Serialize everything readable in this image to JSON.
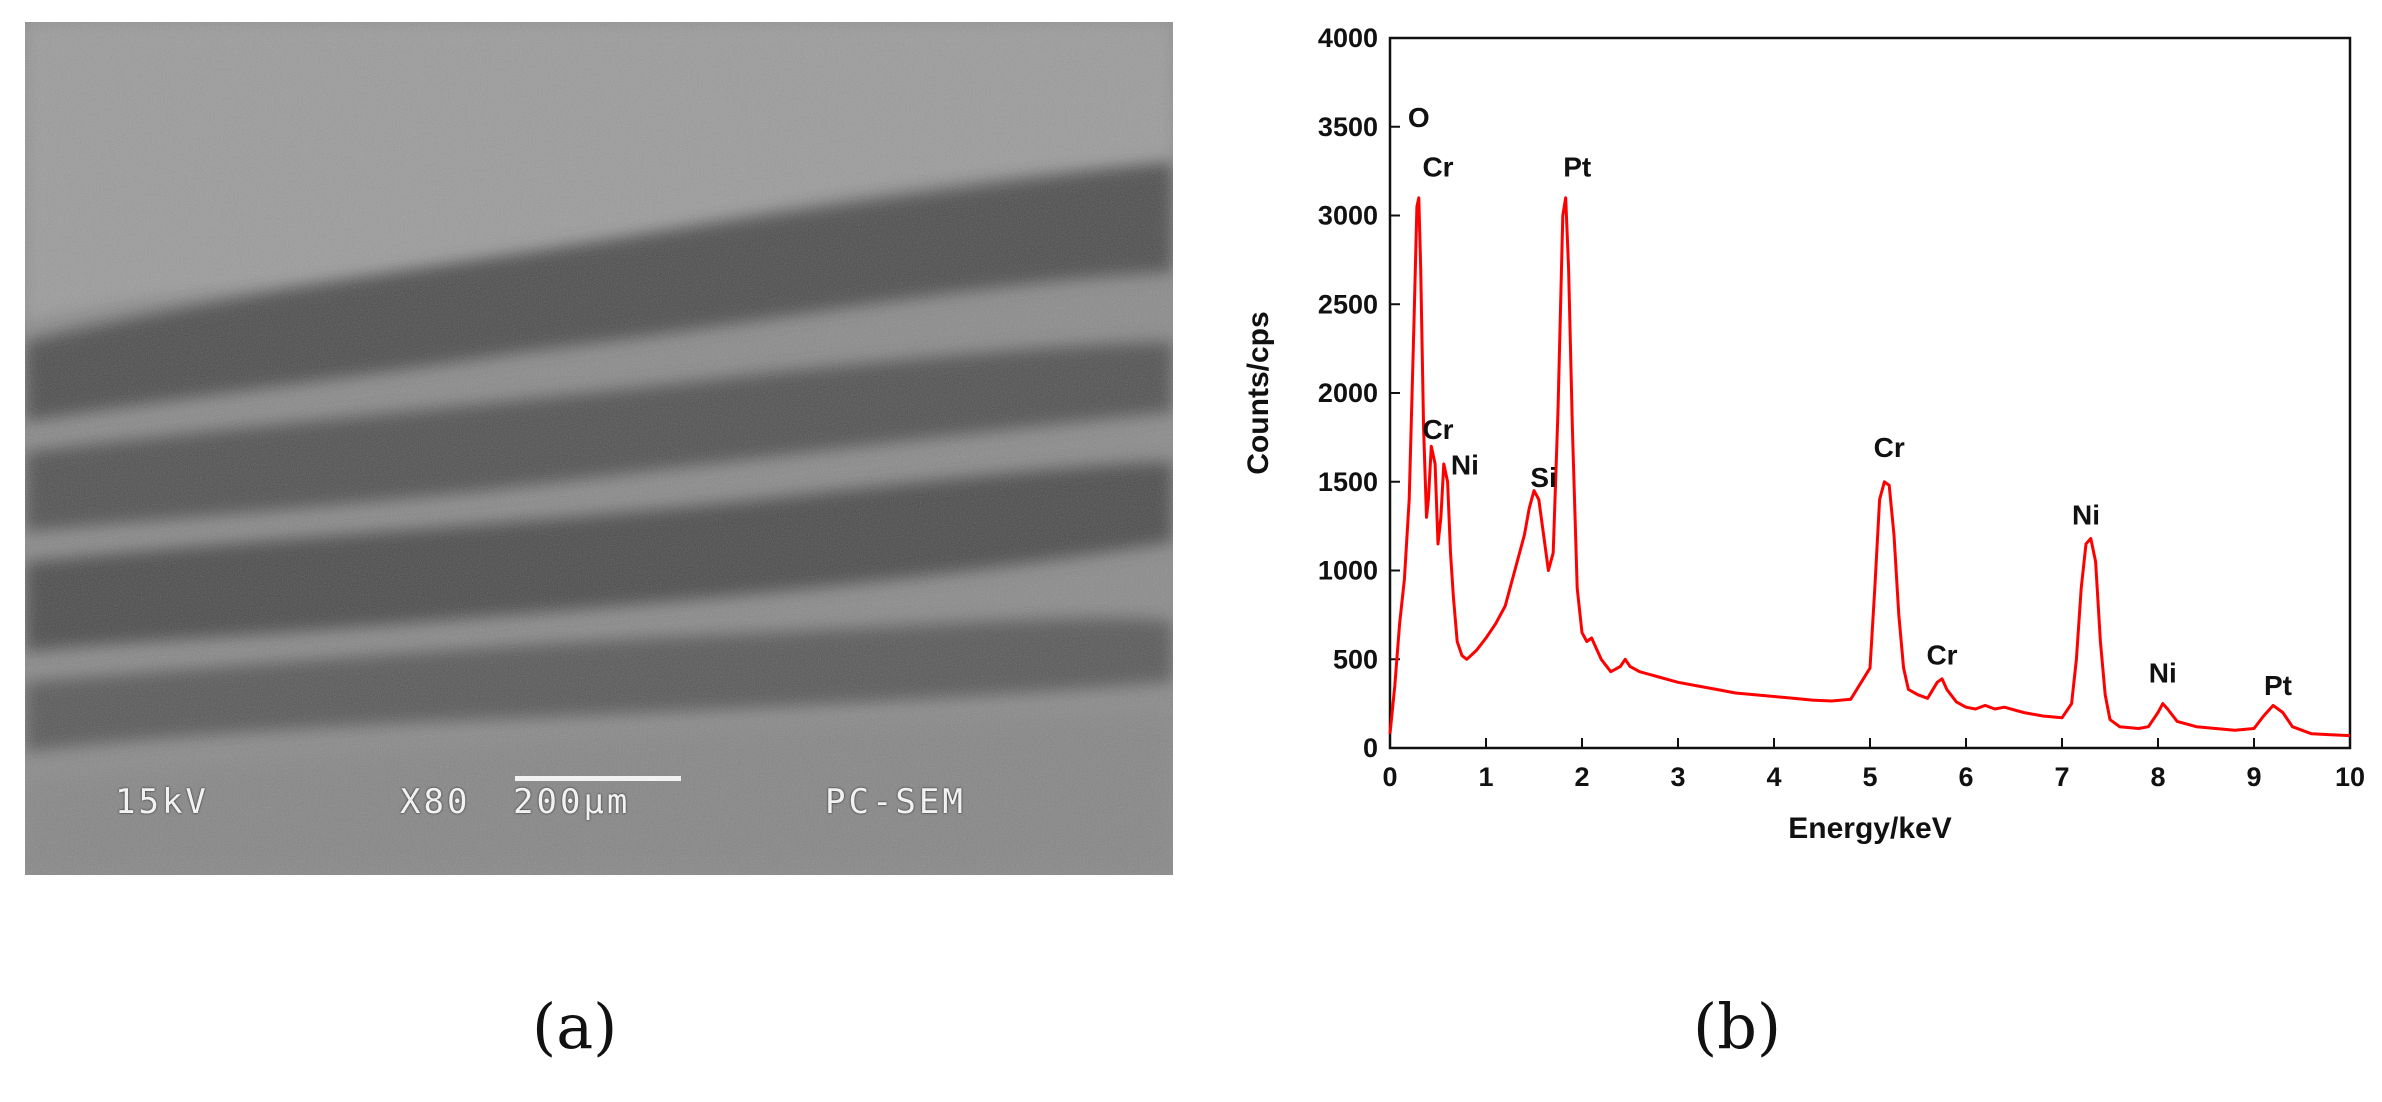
{
  "sem_image": {
    "accelerating_voltage": "15kV",
    "magnification": "X80",
    "scale_bar": "200μm",
    "instrument": "PC-SEM"
  },
  "captions": {
    "a": "(a)",
    "b": "(b)"
  },
  "chart_data": {
    "type": "line",
    "title": "",
    "xlabel": "Energy/keV",
    "ylabel": "Counts/cps",
    "xlim": [
      0,
      10
    ],
    "ylim": [
      0,
      4000
    ],
    "x_ticks": [
      0,
      1,
      2,
      3,
      4,
      5,
      6,
      7,
      8,
      9,
      10
    ],
    "y_ticks": [
      0,
      500,
      1000,
      1500,
      2000,
      2500,
      3000,
      3500,
      4000
    ],
    "grid": false,
    "legend": "none",
    "series_color": "#ff0000",
    "series": [
      {
        "x": [
          0.0,
          0.05,
          0.1,
          0.15,
          0.2,
          0.25,
          0.28,
          0.3,
          0.32,
          0.35,
          0.38,
          0.4,
          0.43,
          0.47,
          0.5,
          0.53,
          0.56,
          0.6,
          0.63,
          0.66,
          0.7,
          0.75,
          0.8,
          0.9,
          1.0,
          1.1,
          1.2,
          1.3,
          1.4,
          1.45,
          1.5,
          1.55,
          1.6,
          1.65,
          1.7,
          1.75,
          1.8,
          1.83,
          1.86,
          1.9,
          1.95,
          2.0,
          2.05,
          2.1,
          2.15,
          2.2,
          2.3,
          2.4,
          2.45,
          2.5,
          2.6,
          2.8,
          3.0,
          3.2,
          3.4,
          3.6,
          3.8,
          4.0,
          4.2,
          4.4,
          4.6,
          4.8,
          5.0,
          5.05,
          5.1,
          5.15,
          5.2,
          5.25,
          5.3,
          5.35,
          5.4,
          5.5,
          5.6,
          5.7,
          5.75,
          5.8,
          5.9,
          6.0,
          6.1,
          6.2,
          6.3,
          6.4,
          6.6,
          6.8,
          7.0,
          7.1,
          7.15,
          7.2,
          7.25,
          7.3,
          7.35,
          7.4,
          7.45,
          7.5,
          7.6,
          7.8,
          7.9,
          8.0,
          8.05,
          8.1,
          8.2,
          8.4,
          8.6,
          8.8,
          9.0,
          9.1,
          9.2,
          9.3,
          9.4,
          9.6,
          9.8,
          10.0
        ],
        "y": [
          80,
          350,
          700,
          950,
          1400,
          2400,
          3050,
          3100,
          2700,
          1800,
          1300,
          1400,
          1700,
          1600,
          1150,
          1300,
          1600,
          1500,
          1100,
          850,
          600,
          520,
          500,
          550,
          620,
          700,
          800,
          1000,
          1200,
          1350,
          1450,
          1400,
          1200,
          1000,
          1100,
          1900,
          3000,
          3100,
          2700,
          1800,
          900,
          650,
          600,
          620,
          560,
          500,
          430,
          460,
          500,
          460,
          430,
          400,
          370,
          350,
          330,
          310,
          300,
          290,
          280,
          270,
          265,
          275,
          450,
          900,
          1400,
          1500,
          1480,
          1200,
          750,
          450,
          330,
          300,
          280,
          370,
          390,
          330,
          260,
          230,
          220,
          240,
          220,
          230,
          200,
          180,
          170,
          250,
          500,
          900,
          1150,
          1180,
          1050,
          600,
          300,
          160,
          120,
          110,
          120,
          200,
          250,
          220,
          150,
          120,
          110,
          100,
          110,
          180,
          240,
          200,
          120,
          80,
          75,
          70
        ]
      }
    ],
    "annotations": [
      {
        "text": "O",
        "x": 0.3,
        "y": 3500
      },
      {
        "text": "Cr",
        "x": 0.5,
        "y": 3220
      },
      {
        "text": "Pt",
        "x": 1.95,
        "y": 3220
      },
      {
        "text": "Cr",
        "x": 0.5,
        "y": 1740
      },
      {
        "text": "Ni",
        "x": 0.78,
        "y": 1540
      },
      {
        "text": "Si",
        "x": 1.6,
        "y": 1470
      },
      {
        "text": "Cr",
        "x": 5.2,
        "y": 1640
      },
      {
        "text": "Ni",
        "x": 7.25,
        "y": 1260
      },
      {
        "text": "Cr",
        "x": 5.75,
        "y": 470
      },
      {
        "text": "Ni",
        "x": 8.05,
        "y": 370
      },
      {
        "text": "Pt",
        "x": 9.25,
        "y": 300
      }
    ]
  }
}
